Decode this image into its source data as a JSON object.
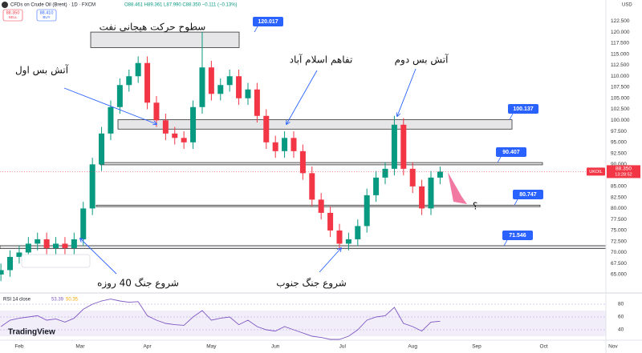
{
  "header": {
    "symbol": "CFDs on Crude Oil (Brent) · 1D · FXCM",
    "ohlc": "O88.461 H89.361 L87.990 C88.350 −0.111 (−0.13%)",
    "sell_price": "88.350",
    "sell": "SELL",
    "buy_price": "88.410",
    "buy": "BUY",
    "currency": "USD",
    "brand": "TradingView"
  },
  "chart_data": {
    "type": "candlestick",
    "x": [
      -6,
      -3,
      0,
      3,
      6,
      9,
      12,
      15,
      18,
      21,
      24,
      27,
      30,
      33,
      36,
      39,
      42,
      45,
      48,
      51,
      54,
      57,
      60,
      63,
      66,
      69,
      72,
      75,
      78,
      81,
      84,
      87,
      90,
      93,
      96,
      99,
      102,
      105,
      108,
      111,
      114,
      117,
      120,
      123,
      126,
      129,
      132,
      135,
      138
    ],
    "open": [
      65,
      66,
      69,
      70,
      72,
      73,
      71,
      72,
      71,
      73,
      80,
      90,
      97,
      103,
      108,
      110,
      113,
      104,
      100,
      97,
      96,
      95,
      103,
      112,
      106,
      108,
      110,
      105,
      107,
      101,
      95,
      93,
      96,
      93,
      88,
      82,
      79,
      75,
      72,
      73,
      76,
      83,
      87,
      89,
      99,
      89,
      85,
      80,
      87
    ],
    "high": [
      67.5,
      70.5,
      71.5,
      73.5,
      74.5,
      74.5,
      73.5,
      73.5,
      74.5,
      81.5,
      91.5,
      98.5,
      104.5,
      109.5,
      111.5,
      114.5,
      114.5,
      105.5,
      101.5,
      98.5,
      97.5,
      104.5,
      120,
      113.5,
      109.5,
      111.5,
      111.5,
      108.5,
      108.5,
      102.5,
      96.5,
      97.5,
      97.5,
      94.5,
      89.5,
      83.5,
      80.5,
      76.5,
      74.5,
      77.5,
      84.5,
      88.5,
      90.5,
      101,
      100.5,
      90.5,
      86.5,
      88.5,
      89.5
    ],
    "low": [
      63.5,
      64.5,
      67.5,
      68.5,
      70.5,
      69.5,
      69.5,
      69.5,
      69.5,
      71.5,
      78.5,
      88.5,
      95.5,
      101.5,
      106.5,
      108.5,
      102.5,
      98.5,
      95.5,
      94.5,
      93.5,
      93.5,
      101.5,
      104.5,
      104.5,
      106.5,
      103.5,
      103.5,
      99.5,
      93.5,
      91.5,
      91.5,
      91.5,
      86.5,
      80.5,
      77.5,
      73.5,
      70.5,
      70.5,
      71.5,
      74.5,
      81.5,
      85.5,
      87.5,
      87.5,
      83.5,
      78.5,
      78.5,
      85.5
    ],
    "close": [
      66,
      69,
      70,
      72,
      73,
      71,
      72,
      71,
      73,
      80,
      90,
      97,
      103,
      108,
      110,
      113,
      104,
      100,
      97,
      96,
      95,
      103,
      112,
      106,
      108,
      110,
      105,
      107,
      101,
      95,
      93,
      96,
      93,
      88,
      82,
      79,
      75,
      72,
      73,
      76,
      83,
      87,
      89,
      99,
      89,
      85,
      80,
      87,
      88.35
    ],
    "up_color": "#089981",
    "down_color": "#f23645",
    "xlim": [
      -6.3,
      204.2
    ],
    "xticks": [
      {
        "value": 0,
        "label": "Feb"
      },
      {
        "value": 20,
        "label": "Mar"
      },
      {
        "value": 42,
        "label": "Apr"
      },
      {
        "value": 63,
        "label": "May"
      },
      {
        "value": 84,
        "label": "Jun"
      },
      {
        "value": 106,
        "label": "Jul"
      },
      {
        "value": 129,
        "label": "Aug"
      },
      {
        "value": 150,
        "label": "Sep"
      },
      {
        "value": 172,
        "label": "Oct"
      },
      {
        "value": 194.7,
        "label": "Nov"
      }
    ],
    "ylim": [
      61,
      127.3
    ],
    "yticks": [
      {
        "value": 65,
        "label": "65.000"
      },
      {
        "value": 67.5,
        "label": "67.500"
      },
      {
        "value": 70,
        "label": "70.000"
      },
      {
        "value": 72.5,
        "label": "72.500"
      },
      {
        "value": 75,
        "label": "75.000"
      },
      {
        "value": 77.5,
        "label": "77.500"
      },
      {
        "value": 80,
        "label": "80.000"
      },
      {
        "value": 82.5,
        "label": "82.500"
      },
      {
        "value": 85,
        "label": "85.000"
      },
      {
        "value": 87.5,
        "label": "87.500"
      },
      {
        "value": 90,
        "label": "90.000"
      },
      {
        "value": 92.5,
        "label": "92.500"
      },
      {
        "value": 95,
        "label": "95.000"
      },
      {
        "value": 97.5,
        "label": "97.500"
      },
      {
        "value": 100,
        "label": "100.000"
      },
      {
        "value": 102.5,
        "label": "102.500"
      },
      {
        "value": 105,
        "label": "105.000"
      },
      {
        "value": 107.5,
        "label": "107.500"
      },
      {
        "value": 110,
        "label": "110.000"
      },
      {
        "value": 112.5,
        "label": "112.500"
      },
      {
        "value": 115,
        "label": "115.000"
      },
      {
        "value": 117.5,
        "label": "117.500"
      },
      {
        "value": 120,
        "label": "120.000"
      },
      {
        "value": 122.5,
        "label": "122.500"
      }
    ],
    "grid": true,
    "last_price": {
      "value": 88.35,
      "label": "88.350"
    },
    "symbol_tag": "UKOIL",
    "countdown": "13:28:52",
    "levels": [
      {
        "value": 120.017,
        "low": 116.5
      },
      {
        "value": 100.137,
        "low": 98
      },
      {
        "value": 90.407,
        "low": 89.9
      },
      {
        "value": 80.747,
        "low": 80.4
      },
      {
        "value": 71.546,
        "low": 70.9
      }
    ],
    "annotations": [
      "سطوح حرکت هیجانی نفت",
      "آتش بس اول",
      "تفاهم اسلام آباد",
      "آتش بس دوم",
      "شروع جنگ 40 روزه",
      "شروع جنگ جنوب",
      "؟"
    ],
    "rsi": {
      "title": "RSI 14 close",
      "value": 53.39,
      "ma": 50.35,
      "values": [
        45,
        55,
        58,
        60,
        62,
        55,
        57,
        52,
        58,
        72,
        80,
        85,
        88,
        85,
        83,
        84,
        62,
        55,
        50,
        48,
        47,
        60,
        70,
        55,
        58,
        60,
        48,
        55,
        45,
        40,
        38,
        45,
        40,
        35,
        30,
        28,
        25,
        25,
        30,
        40,
        55,
        60,
        62,
        75,
        50,
        45,
        38,
        52,
        53.39
      ],
      "ylim": [
        23.75,
        95
      ],
      "yticks": [
        40,
        60,
        80
      ],
      "band": [
        30,
        70
      ],
      "color": "#7e57c2"
    }
  }
}
